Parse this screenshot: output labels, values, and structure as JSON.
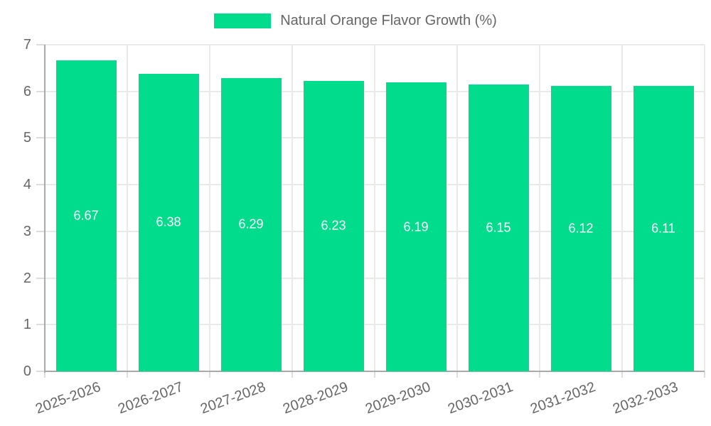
{
  "legend": {
    "label": "Natural Orange Flavor Growth (%)",
    "swatch_color": "#00db8c"
  },
  "chart_data": {
    "type": "bar",
    "title": "",
    "series_name": "Natural Orange Flavor Growth (%)",
    "categories": [
      "2025-2026",
      "2026-2027",
      "2027-2028",
      "2028-2029",
      "2029-2030",
      "2030-2031",
      "2031-2032",
      "2032-2033"
    ],
    "values": [
      6.67,
      6.38,
      6.29,
      6.23,
      6.19,
      6.15,
      6.12,
      6.11
    ],
    "value_labels": [
      "6.67",
      "6.38",
      "6.29",
      "6.23",
      "6.19",
      "6.15",
      "6.12",
      "6.11"
    ],
    "xlabel": "",
    "ylabel": "",
    "ylim": [
      0,
      7
    ],
    "yticks": [
      0,
      1,
      2,
      3,
      4,
      5,
      6,
      7
    ],
    "grid": true,
    "legend_position": "top-center",
    "bar_color": "#00db8c",
    "value_label_color": "#ffffff",
    "axis_text_color": "#666666",
    "gridline_color": "#e9e9e9",
    "axis_line_color": "#a9a9a9"
  }
}
